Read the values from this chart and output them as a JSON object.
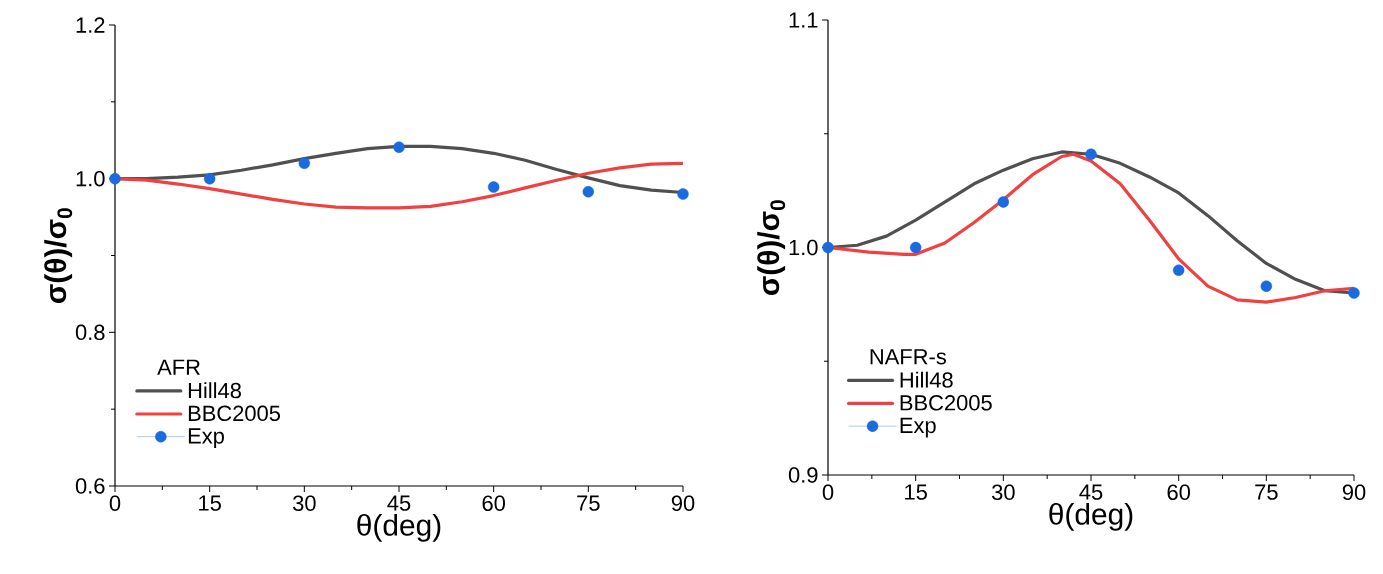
{
  "chart_data": [
    {
      "type": "line",
      "xlabel": "θ(deg)",
      "ylabel": "σ(θ)/σ$_{0}$",
      "legend_title": "AFR",
      "legend": "bottom left",
      "xlim": [
        0,
        90
      ],
      "xticks": [
        0,
        15,
        30,
        45,
        60,
        75,
        90
      ],
      "ylim": [
        0.6,
        1.2
      ],
      "yticks": [
        0.6,
        0.8,
        {
          "value": 1.0,
          "label": "1.0"
        },
        1.2
      ],
      "grid": false,
      "series": [
        {
          "name": "Hill48",
          "type": "line",
          "color": "#505050",
          "x": [
            0,
            5,
            10,
            15,
            20,
            25,
            30,
            35,
            40,
            45,
            50,
            55,
            60,
            65,
            70,
            75,
            80,
            85,
            90
          ],
          "values": [
            1.0,
            1.0,
            1.002,
            1.005,
            1.011,
            1.018,
            1.026,
            1.033,
            1.039,
            1.042,
            1.042,
            1.039,
            1.033,
            1.024,
            1.012,
            1.001,
            0.991,
            0.985,
            0.982
          ]
        },
        {
          "name": "BBC2005",
          "type": "line",
          "color": "#f04040",
          "x": [
            0,
            5,
            10,
            15,
            20,
            25,
            30,
            35,
            40,
            45,
            50,
            55,
            60,
            65,
            70,
            75,
            80,
            85,
            90
          ],
          "values": [
            1.0,
            0.998,
            0.993,
            0.987,
            0.98,
            0.973,
            0.967,
            0.963,
            0.962,
            0.962,
            0.964,
            0.97,
            0.978,
            0.988,
            0.998,
            1.007,
            1.014,
            1.019,
            1.02
          ]
        },
        {
          "name": "Exp",
          "type": "scatter",
          "marker": "circle",
          "color": "#1a6ae0",
          "x": [
            0,
            15,
            30,
            45,
            60,
            75,
            90
          ],
          "values": [
            1.0,
            1.0,
            1.02,
            1.041,
            0.989,
            0.983,
            0.98
          ]
        }
      ]
    },
    {
      "type": "line",
      "xlabel": "θ(deg)",
      "ylabel": "σ(θ)/σ$_{0}$",
      "legend_title": "NAFR-s",
      "legend": "bottom left",
      "xlim": [
        0,
        90
      ],
      "xticks": [
        0,
        15,
        30,
        45,
        60,
        75,
        90
      ],
      "ylim": [
        0.9,
        1.1
      ],
      "yticks": [
        0.9,
        {
          "value": 1.0,
          "label": "1.0"
        },
        1.1
      ],
      "grid": false,
      "series": [
        {
          "name": "Hill48",
          "type": "line",
          "color": "#505050",
          "x": [
            0,
            5,
            10,
            15,
            20,
            25,
            30,
            35,
            40,
            45,
            50,
            55,
            60,
            65,
            70,
            75,
            80,
            85,
            90
          ],
          "values": [
            1.0,
            1.001,
            1.005,
            1.012,
            1.02,
            1.028,
            1.034,
            1.039,
            1.042,
            1.041,
            1.037,
            1.031,
            1.024,
            1.014,
            1.003,
            0.993,
            0.986,
            0.981,
            0.98
          ]
        },
        {
          "name": "BBC2005",
          "type": "line",
          "color": "#f04040",
          "x": [
            0,
            7,
            13,
            15,
            20,
            25,
            30,
            35,
            40,
            42,
            45,
            50,
            55,
            60,
            65,
            70,
            75,
            80,
            85,
            90
          ],
          "values": [
            1.0,
            0.998,
            0.997,
            0.997,
            1.002,
            1.011,
            1.021,
            1.032,
            1.04,
            1.041,
            1.038,
            1.028,
            1.012,
            0.995,
            0.983,
            0.977,
            0.976,
            0.978,
            0.981,
            0.982
          ]
        },
        {
          "name": "Exp",
          "type": "scatter",
          "marker": "circle",
          "color": "#1a6ae0",
          "x": [
            0,
            15,
            30,
            45,
            60,
            75,
            90
          ],
          "values": [
            1.0,
            1.0,
            1.02,
            1.041,
            0.99,
            0.983,
            0.98
          ]
        }
      ]
    }
  ]
}
